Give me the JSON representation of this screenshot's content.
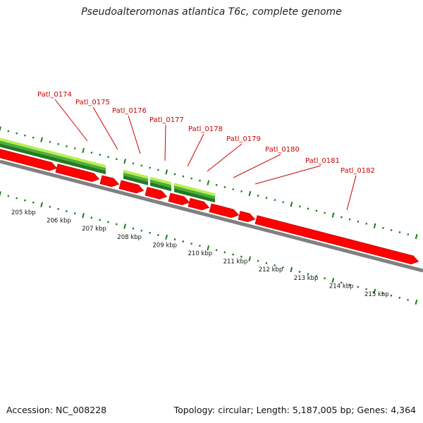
{
  "title": "Pseudoalteromonas atlantica T6c, complete genome",
  "footer": {
    "accession": "Accession: NC_008228",
    "stats": "Topology: circular; Length: 5,187,005 bp; Genes: 4,364"
  },
  "colors": {
    "gene_red": "#ff0000",
    "gene_red_dark": "#c40000",
    "backbone": "#808080",
    "tick_green": "#1a7a1a",
    "label_red": "#cc0000",
    "light_green": "#b8f050",
    "mid_green": "#4cae3c",
    "dark_green": "#237a23"
  },
  "kbp_labels": [
    "205 kbp",
    "206 kbp",
    "207 kbp",
    "208 kbp",
    "209 kbp",
    "210 kbp",
    "211 kbp",
    "212 kbp",
    "213 kbp",
    "214 kbp",
    "215 kbp"
  ],
  "gene_labels": [
    "Patl_0174",
    "Patl_0175",
    "Patl_0176",
    "Patl_0177",
    "Patl_0178",
    "Patl_0179",
    "Patl_0180",
    "Patl_0181",
    "Patl_0182"
  ]
}
